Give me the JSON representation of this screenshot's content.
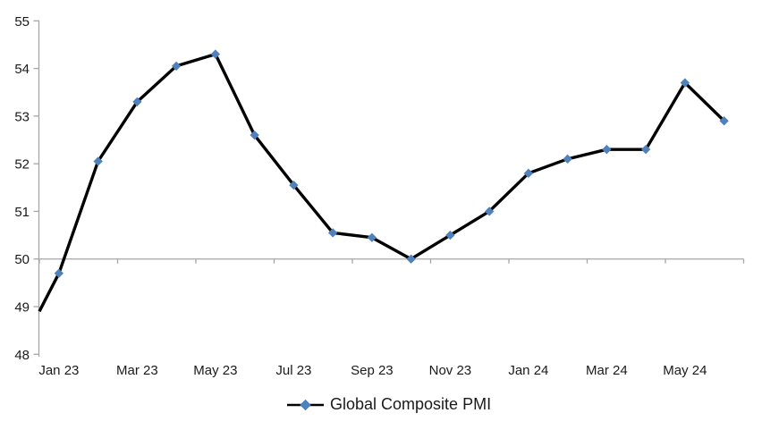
{
  "chart_data": {
    "type": "line",
    "title": "",
    "series": [
      {
        "name": "Global Composite PMI",
        "x": [
          "Jan 23",
          "Feb 23",
          "Mar 23",
          "Apr 23",
          "May 23",
          "Jun 23",
          "Jul 23",
          "Aug 23",
          "Sep 23",
          "Oct 23",
          "Nov 23",
          "Dec 23",
          "Jan 24",
          "Feb 24",
          "Mar 24",
          "Apr 24",
          "May 24",
          "Jun 24"
        ],
        "values": [
          49.7,
          52.05,
          53.3,
          54.05,
          54.3,
          52.6,
          51.55,
          50.55,
          50.45,
          50.0,
          50.5,
          51.0,
          51.8,
          52.1,
          52.3,
          52.3,
          53.7,
          52.9
        ],
        "edge_entry_value": 48.9,
        "marker": "diamond",
        "line_color": "#000000",
        "marker_color": "#4F81BD"
      }
    ],
    "y_axis": {
      "min": 48,
      "max": 55,
      "tick_interval": 1,
      "tick_labels": [
        "48",
        "49",
        "50",
        "51",
        "52",
        "53",
        "54",
        "55"
      ]
    },
    "x_axis": {
      "axis_crosses_at": 50,
      "tick_label_interval": 2,
      "visible_labels": [
        "Jan 23",
        "Mar 23",
        "May 23",
        "Jul 23",
        "Sep 23",
        "Nov 23",
        "Jan 24",
        "Mar 24",
        "May 24"
      ]
    },
    "legend": {
      "position": "bottom-center",
      "label": "Global Composite PMI"
    },
    "grid": false,
    "colors": {
      "axis": "#A6A6A6",
      "tick_text": "#1A1A1A",
      "background": "#FFFFFF"
    }
  }
}
